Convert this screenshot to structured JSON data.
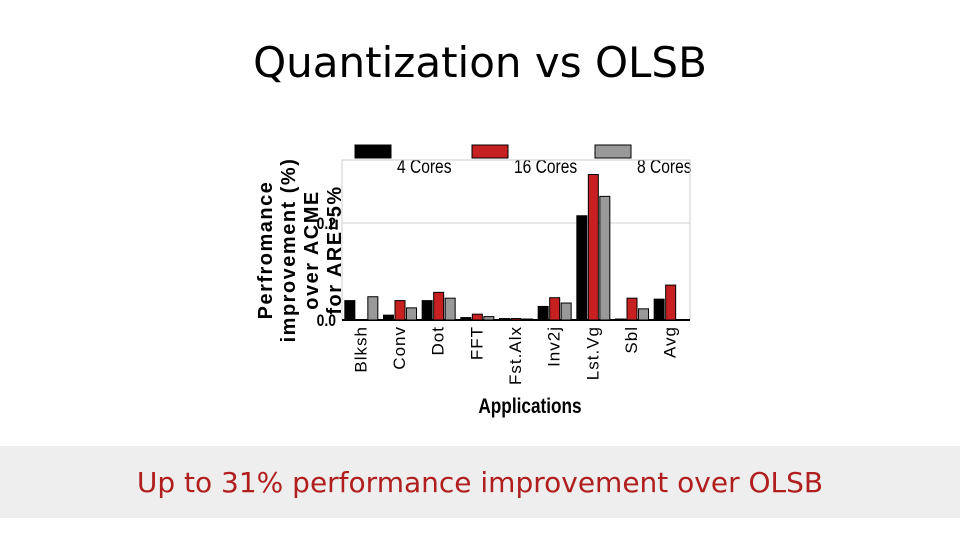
{
  "slide": {
    "title": "Quantization vs OLSB",
    "footer": "Up to 31% performance improvement over OLSB"
  },
  "colors": {
    "4 Cores": "#000000",
    "16 Cores": "#c62020",
    "8 Cores": "#999999",
    "footer_text": "#b01e1e"
  },
  "chart_data": {
    "type": "bar",
    "title": "",
    "xlabel": "Applications",
    "ylabel": "Perfromance improvement (%) over ACME for ARE=5%",
    "ylabel_lines": [
      "Perfromance",
      "improvement (%)",
      "over ACME",
      "for ARE=5%"
    ],
    "ylim": [
      0,
      0.33
    ],
    "yticks": [
      0.0,
      0.2
    ],
    "ytick_labels": [
      "0.0",
      "0.2"
    ],
    "grid": true,
    "legend_position": "top",
    "categories": [
      "Blksh",
      "Conv",
      "Dot",
      "FFT",
      "Fst.Alx",
      "Inv2j",
      "Lst.Vg",
      "Sbl",
      "Avg"
    ],
    "series": [
      {
        "name": "4 Cores",
        "values": [
          0.04,
          0.01,
          0.04,
          0.005,
          0.003,
          0.028,
          0.215,
          0.002,
          0.043
        ]
      },
      {
        "name": "16 Cores",
        "values": [
          0.0,
          0.04,
          0.057,
          0.012,
          0.003,
          0.046,
          0.3,
          0.045,
          0.072
        ]
      },
      {
        "name": "8 Cores",
        "values": [
          0.048,
          0.025,
          0.045,
          0.007,
          0.002,
          0.035,
          0.255,
          0.023,
          0.0
        ]
      }
    ]
  }
}
